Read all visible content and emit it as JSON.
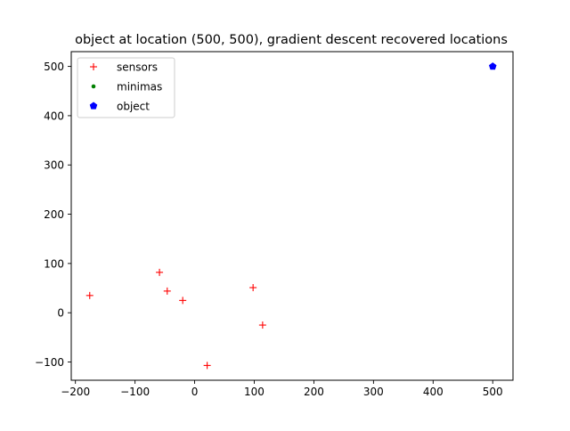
{
  "chart_data": {
    "type": "scatter",
    "title": "object at location (500, 500), gradient descent recovered locations",
    "xlabel": "",
    "ylabel": "",
    "xlim": [
      -207,
      534
    ],
    "ylim": [
      -137,
      530
    ],
    "xticks": [
      -200,
      -100,
      0,
      100,
      200,
      300,
      400,
      500
    ],
    "yticks": [
      -100,
      0,
      100,
      200,
      300,
      400,
      500
    ],
    "grid": false,
    "legend_position": "upper-left",
    "series": [
      {
        "name": "sensors",
        "marker": "plus",
        "color": "#ff0000",
        "points": [
          {
            "x": -176,
            "y": 35
          },
          {
            "x": -59,
            "y": 82
          },
          {
            "x": -46,
            "y": 44
          },
          {
            "x": -20,
            "y": 25
          },
          {
            "x": 98,
            "y": 51
          },
          {
            "x": 114,
            "y": -25
          },
          {
            "x": 21,
            "y": -107
          }
        ]
      },
      {
        "name": "minimas",
        "marker": "dot",
        "color": "#008000",
        "points": [
          {
            "x": 500,
            "y": 500
          }
        ]
      },
      {
        "name": "object",
        "marker": "pentagon",
        "color": "#0000ff",
        "points": [
          {
            "x": 500,
            "y": 500
          }
        ]
      }
    ]
  }
}
